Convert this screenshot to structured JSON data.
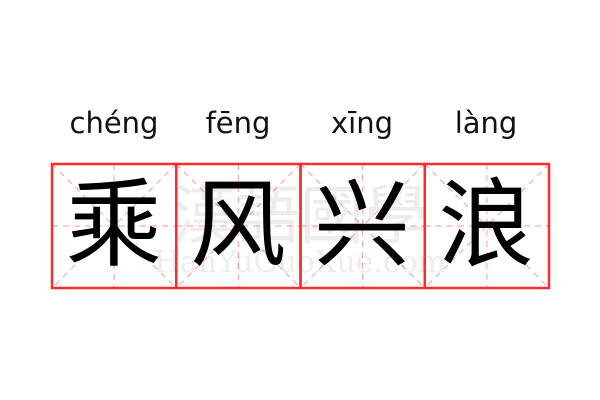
{
  "idiom": {
    "chars": [
      {
        "char": "乘",
        "pinyin": "chéng"
      },
      {
        "char": "风",
        "pinyin": "fēng"
      },
      {
        "char": "兴",
        "pinyin": "xīng"
      },
      {
        "char": "浪",
        "pinyin": "làng"
      }
    ]
  },
  "watermark": {
    "cn": "漢語國學",
    "en": "HanYuGuoXue.com"
  },
  "colors": {
    "grid": "#ff2a2a",
    "guide": "#ffaaaa",
    "text": "#000000"
  }
}
